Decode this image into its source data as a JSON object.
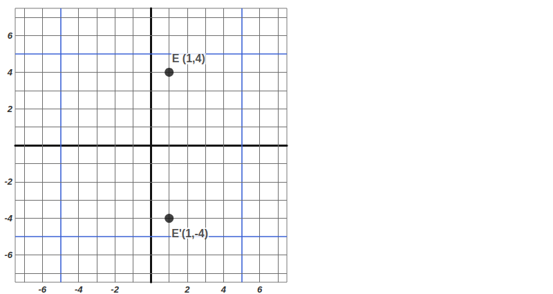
{
  "chart_data": {
    "type": "scatter",
    "x": [
      1,
      1
    ],
    "values": [
      4,
      -4
    ],
    "point_labels": [
      "E (1,4)",
      "E'(1,-4)"
    ],
    "color": "#111111",
    "xlim": [
      -7.5,
      7.5
    ],
    "xticks": [
      -6,
      -4,
      -2,
      2,
      4,
      6
    ],
    "ylim": [
      -7.5,
      7.5
    ],
    "yticks": [
      -6,
      -4,
      -2,
      2,
      4,
      6
    ],
    "grid": true
  }
}
